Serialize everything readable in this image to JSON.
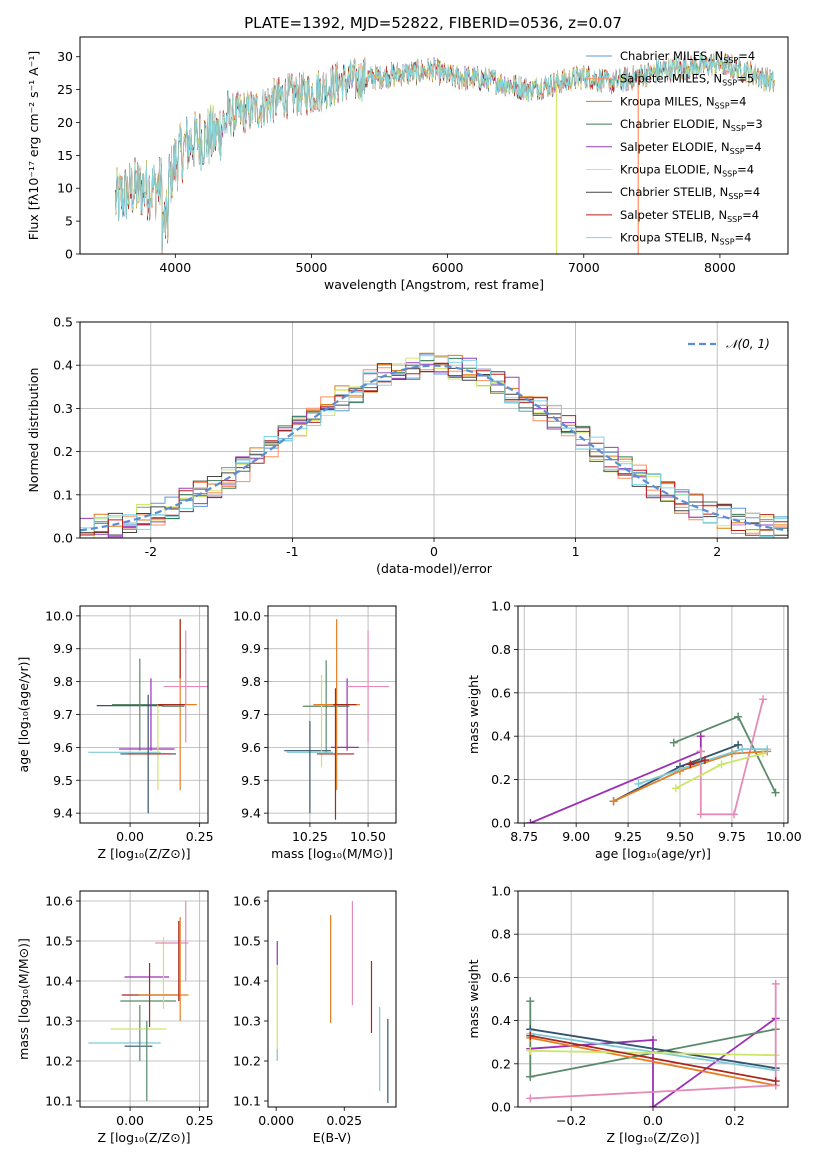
{
  "figure": {
    "title": "PLATE=1392, MJD=52822, FIBERID=0536, z=0.07"
  },
  "colors": {
    "chabrier_miles": "#5b9bd5",
    "salpeter_miles": "#ff8f5e",
    "kroupa_miles": "#e07b14",
    "chabrier_elodie": "#3d7a5a",
    "salpeter_elodie": "#9a3db8",
    "kroupa_elodie": "#d4e86a",
    "chabrier_stelib": "#444444",
    "salpeter_stelib": "#b8201c",
    "kroupa_stelib": "#7fd6e6",
    "gauss": "#5b8dd6",
    "green": "#5a8a6a",
    "purple": "#9b30b5",
    "orange": "#e67e22",
    "pink": "#e68ab8",
    "yellow": "#cce66a",
    "navy": "#34546e",
    "teal": "#7fcad6",
    "red": "#a8281e"
  },
  "chart_data": [
    {
      "id": "spectrum",
      "type": "line",
      "title": "PLATE=1392, MJD=52822, FIBERID=0536, z=0.07",
      "xlabel": "wavelength [Angstrom, rest frame]",
      "ylabel": "Flux [fλ10⁻¹⁷ erg cm⁻² s⁻¹ A⁻¹]",
      "xlim": [
        3300,
        8500
      ],
      "ylim": [
        0,
        33
      ],
      "xticks": [
        4000,
        5000,
        6000,
        7000,
        8000
      ],
      "yticks": [
        0,
        5,
        10,
        15,
        20,
        25,
        30
      ],
      "grid": false,
      "legend_position": "top-right",
      "legend": [
        "Chabrier MILES, N_SSP=4",
        "Salpeter MILES, N_SSP=5",
        "Kroupa MILES, N_SSP=4",
        "Chabrier ELODIE, N_SSP=3",
        "Salpeter ELODIE, N_SSP=4",
        "Kroupa ELODIE, N_SSP=4",
        "Chabrier STELIB, N_SSP=4",
        "Salpeter STELIB, N_SSP=4",
        "Kroupa STELIB, N_SSP=4"
      ],
      "continuum_knots": {
        "x": [
          3560,
          3700,
          3850,
          3950,
          4000,
          4100,
          4300,
          4400,
          4600,
          4800,
          5000,
          5200,
          5500,
          5900,
          6000,
          6300,
          6600,
          7000,
          7200,
          7600,
          8000,
          8300,
          8400
        ],
        "y": [
          8,
          10,
          10,
          11,
          14,
          17,
          18,
          21,
          22,
          24,
          24.5,
          26,
          27,
          28,
          27,
          26.5,
          25,
          27,
          26,
          28,
          29,
          27,
          26
        ]
      },
      "spikes": [
        {
          "x": 6800,
          "y": 0
        },
        {
          "x": 7400,
          "y": 0
        }
      ]
    },
    {
      "id": "residuals",
      "type": "line",
      "xlabel": "(data-model)/error",
      "ylabel": "Normed distribution",
      "xlim": [
        -2.5,
        2.5
      ],
      "ylim": [
        0,
        0.5
      ],
      "xticks": [
        -2,
        -1,
        0,
        1,
        2
      ],
      "yticks": [
        0.0,
        0.1,
        0.2,
        0.3,
        0.4,
        0.5
      ],
      "grid": true,
      "legend_position": "top-right",
      "legend": [
        "𝒩(0, 1)"
      ],
      "hist_bin_width": 0.1
    },
    {
      "id": "age_vs_Z",
      "type": "scatter",
      "xlabel": "Z [log₁₀(Z/Z⊙)]",
      "ylabel": "age  [log₁₀(age/yr)]",
      "xlim": [
        -0.18,
        0.28
      ],
      "ylim": [
        9.37,
        10.03
      ],
      "xticks": [
        0.0,
        0.25
      ],
      "xtick_labels": [
        "0.00",
        "0.25"
      ],
      "yticks": [
        9.4,
        9.5,
        9.6,
        9.7,
        9.8,
        9.9,
        10.0
      ],
      "grid": true,
      "errorbars": [
        {
          "color": "navy",
          "x": 0.0,
          "y": 9.727,
          "xerr": 0.12,
          "yerr": 0.0
        },
        {
          "color": "green",
          "x": 0.035,
          "y": 9.73,
          "xerr": 0.1,
          "yerr": 0.14
        },
        {
          "color": "teal",
          "x": -0.02,
          "y": 9.585,
          "xerr": 0.13,
          "yerr": 0.0
        },
        {
          "color": "navy",
          "x": 0.065,
          "y": 9.58,
          "xerr": 0.1,
          "yerr": 0.18
        },
        {
          "color": "purple",
          "x": 0.06,
          "y": 9.595,
          "xerr": 0.1,
          "yerr": 0.0
        },
        {
          "color": "purple",
          "x": 0.075,
          "y": 9.7,
          "xerr": 0.0,
          "yerr": 0.11
        },
        {
          "color": "yellow",
          "x": 0.1,
          "y": 9.6,
          "xerr": 0.0,
          "yerr": 0.13
        },
        {
          "color": "red",
          "x": 0.07,
          "y": 9.58,
          "xerr": 0.08,
          "yerr": 0.0
        },
        {
          "color": "orange",
          "x": 0.18,
          "y": 9.73,
          "xerr": 0.06,
          "yerr": 0.26
        },
        {
          "color": "red",
          "x": 0.15,
          "y": 9.73,
          "xerr": 0.05,
          "yerr": 0.0
        },
        {
          "color": "red",
          "x": 0.18,
          "y": 9.9,
          "xerr": 0.0,
          "yerr": 0.09
        },
        {
          "color": "pink",
          "x": 0.2,
          "y": 9.785,
          "xerr": 0.08,
          "yerr": 0.17
        },
        {
          "color": "green",
          "x": 0.155,
          "y": 9.725,
          "xerr": 0.04,
          "yerr": 0.0
        }
      ]
    },
    {
      "id": "age_vs_mass",
      "type": "scatter",
      "xlabel": "mass [log₁₀(M/M⊙)]",
      "ylabel": "",
      "xlim": [
        10.07,
        10.62
      ],
      "ylim": [
        9.37,
        10.03
      ],
      "xticks": [
        10.25,
        10.5
      ],
      "xtick_labels": [
        "10.25",
        "10.50"
      ],
      "yticks": [
        9.4,
        9.5,
        9.6,
        9.7,
        9.8,
        9.9,
        10.0
      ],
      "grid": true,
      "errorbars": [
        {
          "color": "navy",
          "x": 10.24,
          "y": 9.59,
          "xerr": 0.1,
          "yerr": 0.0
        },
        {
          "color": "teal",
          "x": 10.25,
          "y": 9.585,
          "xerr": 0.1,
          "yerr": 0.0
        },
        {
          "color": "green",
          "x": 10.32,
          "y": 9.725,
          "xerr": 0.1,
          "yerr": 0.14
        },
        {
          "color": "navy",
          "x": 10.25,
          "y": 9.54,
          "xerr": 0.0,
          "yerr": 0.14
        },
        {
          "color": "yellow",
          "x": 10.3,
          "y": 9.68,
          "xerr": 0.0,
          "yerr": 0.14
        },
        {
          "color": "purple",
          "x": 10.41,
          "y": 9.7,
          "xerr": 0.0,
          "yerr": 0.11
        },
        {
          "color": "purple",
          "x": 10.4,
          "y": 9.6,
          "xerr": 0.06,
          "yerr": 0.0
        },
        {
          "color": "red",
          "x": 10.36,
          "y": 9.58,
          "xerr": 0.08,
          "yerr": 0.2
        },
        {
          "color": "orange",
          "x": 10.365,
          "y": 9.73,
          "xerr": 0.1,
          "yerr": 0.26
        },
        {
          "color": "red",
          "x": 10.4,
          "y": 9.73,
          "xerr": 0.05,
          "yerr": 0.0
        },
        {
          "color": "pink",
          "x": 10.5,
          "y": 9.785,
          "xerr": 0.09,
          "yerr": 0.17
        }
      ]
    },
    {
      "id": "massweight_vs_age",
      "type": "line",
      "xlabel": "age  [log₁₀(age/yr)]",
      "ylabel": "mass weight",
      "xlim": [
        8.72,
        10.02
      ],
      "ylim": [
        0,
        1
      ],
      "xticks": [
        8.75,
        9.0,
        9.25,
        9.5,
        9.75,
        10.0
      ],
      "xtick_labels": [
        "8.75",
        "9.00",
        "9.25",
        "9.50",
        "9.75",
        "10.00"
      ],
      "yticks": [
        0.0,
        0.2,
        0.4,
        0.6,
        0.8,
        1.0
      ],
      "grid": true,
      "series": [
        {
          "color": "purple",
          "x": [
            8.78,
            9.6,
            9.6
          ],
          "y": [
            0.0,
            0.33,
            0.4
          ]
        },
        {
          "color": "green",
          "x": [
            9.47,
            9.78,
            9.96
          ],
          "y": [
            0.37,
            0.49,
            0.14
          ]
        },
        {
          "color": "pink",
          "x": [
            9.6,
            9.6,
            9.76,
            9.9
          ],
          "y": [
            0.33,
            0.04,
            0.04,
            0.57
          ]
        },
        {
          "color": "navy",
          "x": [
            9.18,
            9.5,
            9.78
          ],
          "y": [
            0.1,
            0.26,
            0.36
          ]
        },
        {
          "color": "orange",
          "x": [
            9.18,
            9.5,
            9.75,
            9.92
          ],
          "y": [
            0.1,
            0.24,
            0.32,
            0.33
          ]
        },
        {
          "color": "yellow",
          "x": [
            9.48,
            9.7,
            9.9
          ],
          "y": [
            0.16,
            0.27,
            0.32
          ]
        },
        {
          "color": "teal",
          "x": [
            9.3,
            9.6,
            9.8,
            9.92
          ],
          "y": [
            0.18,
            0.28,
            0.34,
            0.34
          ]
        },
        {
          "color": "red",
          "x": [
            9.55,
            9.62
          ],
          "y": [
            0.27,
            0.29
          ]
        }
      ]
    },
    {
      "id": "mass_vs_Z",
      "type": "scatter",
      "xlabel": "Z [log₁₀(Z/Z⊙)]",
      "ylabel": "mass [log₁₀(M/M⊙)]",
      "xlim": [
        -0.18,
        0.28
      ],
      "ylim": [
        10.085,
        10.625
      ],
      "xticks": [
        0.0,
        0.25
      ],
      "xtick_labels": [
        "0.00",
        "0.25"
      ],
      "yticks": [
        10.1,
        10.2,
        10.3,
        10.4,
        10.5,
        10.6
      ],
      "grid": true,
      "errorbars": [
        {
          "color": "teal",
          "x": -0.02,
          "y": 10.245,
          "xerr": 0.13,
          "yerr": 0.0
        },
        {
          "color": "navy",
          "x": 0.03,
          "y": 10.237,
          "xerr": 0.05,
          "yerr": 0.0
        },
        {
          "color": "green",
          "x": 0.035,
          "y": 10.27,
          "xerr": 0.0,
          "yerr": 0.07
        },
        {
          "color": "yellow",
          "x": 0.03,
          "y": 10.28,
          "xerr": 0.1,
          "yerr": 0.0
        },
        {
          "color": "green",
          "x": 0.06,
          "y": 10.2,
          "xerr": 0.0,
          "yerr": 0.1
        },
        {
          "color": "green",
          "x": 0.065,
          "y": 10.35,
          "xerr": 0.1,
          "yerr": 0.0
        },
        {
          "color": "purple",
          "x": 0.06,
          "y": 10.41,
          "xerr": 0.08,
          "yerr": 0.0
        },
        {
          "color": "red",
          "x": 0.07,
          "y": 10.365,
          "xerr": 0.1,
          "yerr": 0.08
        },
        {
          "color": "yellow",
          "x": 0.12,
          "y": 10.42,
          "xerr": 0.0,
          "yerr": 0.09
        },
        {
          "color": "orange",
          "x": 0.12,
          "y": 10.365,
          "xerr": 0.09,
          "yerr": 0.0
        },
        {
          "color": "orange",
          "x": 0.18,
          "y": 10.43,
          "xerr": 0.0,
          "yerr": 0.13
        },
        {
          "color": "pink",
          "x": 0.15,
          "y": 10.495,
          "xerr": 0.06,
          "yerr": 0.0
        },
        {
          "color": "pink",
          "x": 0.2,
          "y": 10.5,
          "xerr": 0.0,
          "yerr": 0.1
        },
        {
          "color": "red",
          "x": 0.175,
          "y": 10.45,
          "xerr": 0.0,
          "yerr": 0.1
        }
      ]
    },
    {
      "id": "mass_vs_EBV",
      "type": "scatter",
      "xlabel": "E(B-V)",
      "ylabel": "",
      "xlim": [
        -0.003,
        0.044
      ],
      "ylim": [
        10.085,
        10.625
      ],
      "xticks": [
        0.0,
        0.025
      ],
      "xtick_labels": [
        "0.000",
        "0.025"
      ],
      "yticks": [
        10.1,
        10.2,
        10.3,
        10.4,
        10.5,
        10.6
      ],
      "grid": false,
      "errorbars": [
        {
          "color": "purple",
          "x": 0.0004,
          "y": 10.47,
          "xerr": 0.0,
          "yerr": 0.03
        },
        {
          "color": "yellow",
          "x": 0.0004,
          "y": 10.32,
          "xerr": 0.0,
          "yerr": 0.12
        },
        {
          "color": "teal",
          "x": 0.0004,
          "y": 10.215,
          "xerr": 0.0,
          "yerr": 0.015
        },
        {
          "color": "orange",
          "x": 0.02,
          "y": 10.43,
          "xerr": 0.0,
          "yerr": 0.135
        },
        {
          "color": "pink",
          "x": 0.028,
          "y": 10.47,
          "xerr": 0.0,
          "yerr": 0.13
        },
        {
          "color": "red",
          "x": 0.035,
          "y": 10.36,
          "xerr": 0.0,
          "yerr": 0.09
        },
        {
          "color": "teal",
          "x": 0.038,
          "y": 10.23,
          "xerr": 0.0,
          "yerr": 0.105
        },
        {
          "color": "navy",
          "x": 0.041,
          "y": 10.2,
          "xerr": 0.0,
          "yerr": 0.105
        }
      ]
    },
    {
      "id": "massweight_vs_Z",
      "type": "line",
      "xlabel": "Z [log₁₀(Z/Z⊙)]",
      "ylabel": "mass weight",
      "xlim": [
        -0.33,
        0.33
      ],
      "ylim": [
        0,
        1
      ],
      "xticks": [
        -0.2,
        0.0,
        0.2
      ],
      "xtick_labels": [
        "−0.2",
        "0.0",
        "0.2"
      ],
      "yticks": [
        0.0,
        0.2,
        0.4,
        0.6,
        0.8,
        1.0
      ],
      "grid": true,
      "series": [
        {
          "color": "purple",
          "x": [
            -0.3,
            0.0,
            0.0,
            0.3
          ],
          "y": [
            0.27,
            0.31,
            0.0,
            0.41
          ]
        },
        {
          "color": "green",
          "x": [
            -0.3,
            0.3
          ],
          "y": [
            0.14,
            0.36
          ]
        },
        {
          "color": "green",
          "x": [
            -0.3,
            -0.3
          ],
          "y": [
            0.14,
            0.49
          ]
        },
        {
          "color": "navy",
          "x": [
            -0.3,
            0.3
          ],
          "y": [
            0.36,
            0.18
          ]
        },
        {
          "color": "teal",
          "x": [
            -0.3,
            0.3
          ],
          "y": [
            0.34,
            0.17
          ]
        },
        {
          "color": "orange",
          "x": [
            -0.3,
            0.3
          ],
          "y": [
            0.32,
            0.1
          ]
        },
        {
          "color": "yellow",
          "x": [
            -0.3,
            0.3
          ],
          "y": [
            0.26,
            0.24
          ]
        },
        {
          "color": "pink",
          "x": [
            -0.3,
            0.3,
            0.3
          ],
          "y": [
            0.04,
            0.1,
            0.57
          ]
        },
        {
          "color": "red",
          "x": [
            -0.3,
            0.3
          ],
          "y": [
            0.33,
            0.12
          ]
        }
      ]
    }
  ]
}
